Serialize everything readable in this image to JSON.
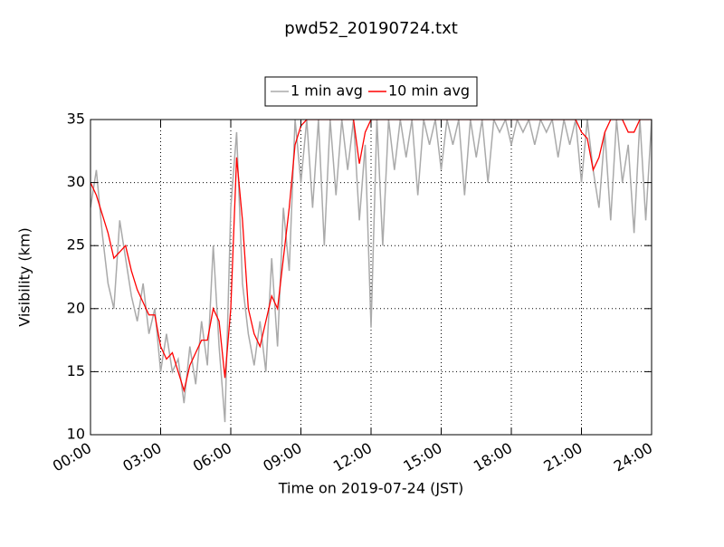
{
  "chart_data": {
    "type": "line",
    "title": "pwd52_20190724.txt",
    "xlabel": "Time on 2019-07-24 (JST)",
    "ylabel": "Visibility (km)",
    "x": [
      0,
      0.25,
      0.5,
      0.75,
      1,
      1.25,
      1.5,
      1.75,
      2,
      2.25,
      2.5,
      2.75,
      3,
      3.25,
      3.5,
      3.75,
      4,
      4.25,
      4.5,
      4.75,
      5,
      5.25,
      5.5,
      5.75,
      6,
      6.25,
      6.5,
      6.75,
      7,
      7.25,
      7.5,
      7.75,
      8,
      8.25,
      8.5,
      8.75,
      9,
      9.25,
      9.5,
      9.75,
      10,
      10.25,
      10.5,
      10.75,
      11,
      11.25,
      11.5,
      11.75,
      12,
      12.25,
      12.5,
      12.75,
      13,
      13.25,
      13.5,
      13.75,
      14,
      14.25,
      14.5,
      14.75,
      15,
      15.25,
      15.5,
      15.75,
      16,
      16.25,
      16.5,
      16.75,
      17,
      17.25,
      17.5,
      17.75,
      18,
      18.25,
      18.5,
      18.75,
      19,
      19.25,
      19.5,
      19.75,
      20,
      20.25,
      20.5,
      20.75,
      21,
      21.25,
      21.5,
      21.75,
      22,
      22.25,
      22.5,
      22.75,
      23,
      23.25,
      23.5,
      23.75,
      24
    ],
    "series": [
      {
        "name": "1 min avg",
        "color": "#aaaaaa",
        "values": [
          28,
          31,
          26,
          22,
          20,
          27,
          24,
          21,
          19,
          22,
          18,
          20,
          15,
          18,
          15,
          16,
          12.5,
          17,
          14,
          19,
          15.5,
          25,
          17,
          11,
          28,
          34,
          22,
          18,
          15.5,
          19,
          15,
          24,
          17,
          28,
          23,
          35,
          30,
          35,
          28,
          35,
          25,
          35,
          29,
          35,
          31,
          35,
          27,
          33,
          18.5,
          35,
          25,
          35,
          31,
          35,
          32,
          35,
          29,
          35,
          33,
          35,
          31,
          35,
          33,
          35,
          29,
          35,
          32,
          35,
          30,
          35,
          34,
          35,
          33,
          35,
          34,
          35,
          33,
          35,
          34,
          35,
          32,
          35,
          33,
          35,
          30,
          35,
          31,
          28,
          34,
          27,
          35,
          30,
          33,
          26,
          35,
          27,
          35
        ]
      },
      {
        "name": "10 min avg",
        "color": "#ff0000",
        "values": [
          30,
          29,
          27.5,
          26,
          24,
          24.5,
          25,
          23,
          21.5,
          20.5,
          19.5,
          19.5,
          17,
          16,
          16.5,
          15,
          13.5,
          15.5,
          16.5,
          17.5,
          17.5,
          20,
          19,
          14.5,
          20,
          32,
          27,
          20,
          18,
          17,
          19,
          21,
          20,
          24,
          28,
          33,
          34.5,
          35,
          35,
          35,
          35,
          35,
          35,
          35,
          35,
          35,
          31.5,
          34,
          35,
          35,
          35,
          35,
          35,
          35,
          35,
          35,
          35,
          35,
          35,
          35,
          35,
          35,
          35,
          35,
          35,
          35,
          35,
          35,
          35,
          35,
          35,
          35,
          35,
          35,
          35,
          35,
          35,
          35,
          35,
          35,
          35,
          35,
          35,
          35,
          34,
          33.5,
          31,
          32,
          34,
          35,
          35,
          35,
          34,
          34,
          35,
          35,
          35
        ]
      }
    ],
    "xlim": [
      0,
      24
    ],
    "xticks": [
      {
        "value": 0,
        "label": "00:00"
      },
      {
        "value": 3,
        "label": "03:00"
      },
      {
        "value": 6,
        "label": "06:00"
      },
      {
        "value": 9,
        "label": "09:00"
      },
      {
        "value": 12,
        "label": "12:00"
      },
      {
        "value": 15,
        "label": "15:00"
      },
      {
        "value": 18,
        "label": "18:00"
      },
      {
        "value": 21,
        "label": "21:00"
      },
      {
        "value": 24,
        "label": "24:00"
      }
    ],
    "ylim": [
      10,
      35
    ],
    "yticks": [
      10,
      15,
      20,
      25,
      30,
      35
    ],
    "grid": true,
    "legend": "top"
  }
}
